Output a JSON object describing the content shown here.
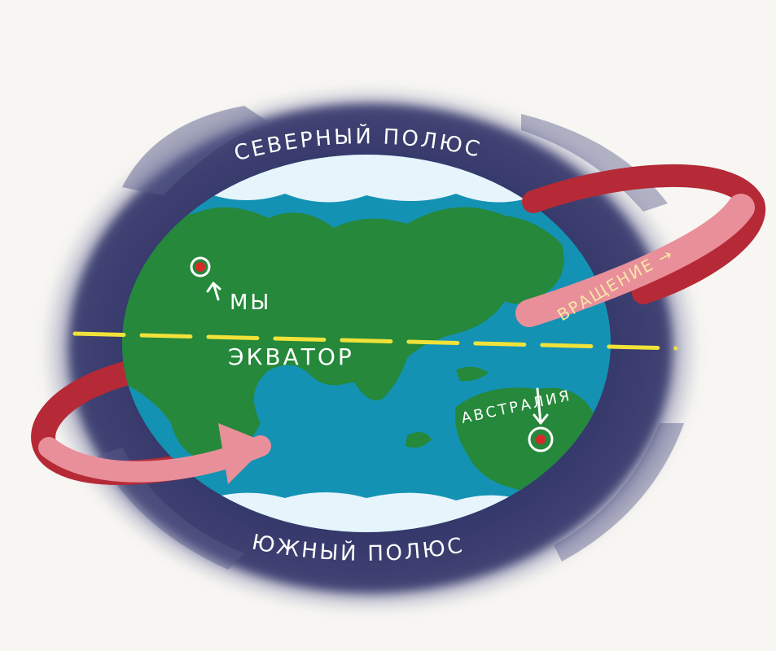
{
  "labels": {
    "north_pole": "СЕВЕРНЫЙ ПОЛЮС",
    "south_pole": "ЮЖНЫЙ ПОЛЮС",
    "equator": "ЭКВАТОР",
    "we": "МЫ",
    "australia": "АВСТРАЛИЯ",
    "rotation": "ВРАЩЕНИЕ →"
  },
  "colors": {
    "background": "#f7f6f2",
    "halo": "#3d3f73",
    "ocean": "#1492b4",
    "land": "#25883a",
    "ice": "#e6f4fb",
    "equator_line": "#f1e23a",
    "arrow_dark": "#b52a36",
    "arrow_light": "#e98f9a",
    "marker": "#d62a2a"
  }
}
